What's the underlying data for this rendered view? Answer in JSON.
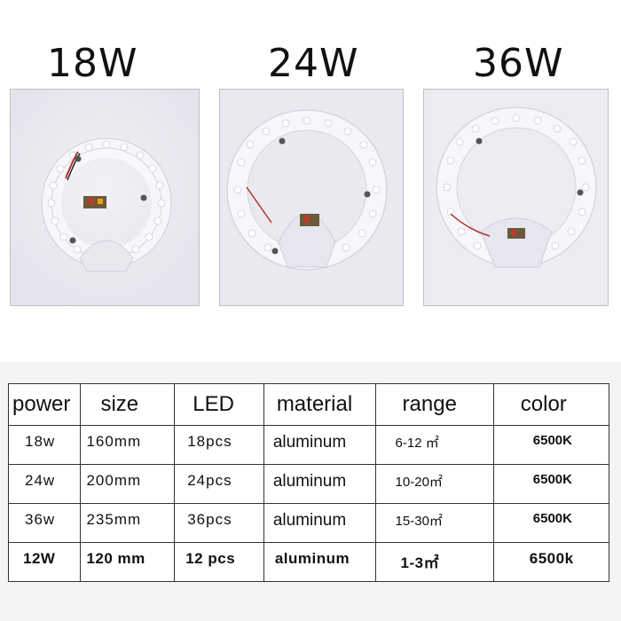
{
  "titles": [
    "18W",
    "24W",
    "36W"
  ],
  "table": {
    "headers": [
      "power",
      "size",
      "LED",
      "material",
      "range",
      "color"
    ],
    "rows": [
      [
        "18w",
        "160mm",
        "18pcs",
        "aluminum",
        "6-12 ㎡",
        "6500K"
      ],
      [
        "24w",
        "200mm",
        "24pcs",
        "aluminum",
        "10-20㎡",
        "6500K"
      ],
      [
        "36w",
        "235mm",
        "36pcs",
        "aluminum",
        "15-30㎡",
        "6500K"
      ],
      [
        "12W",
        "120 mm",
        "12 pcs",
        "aluminum",
        "1-3㎡",
        "6500k"
      ]
    ]
  },
  "colors": {
    "photo_bg": "#e9e9f0",
    "band_bg": "#f4f4f4",
    "border": "#333333"
  }
}
